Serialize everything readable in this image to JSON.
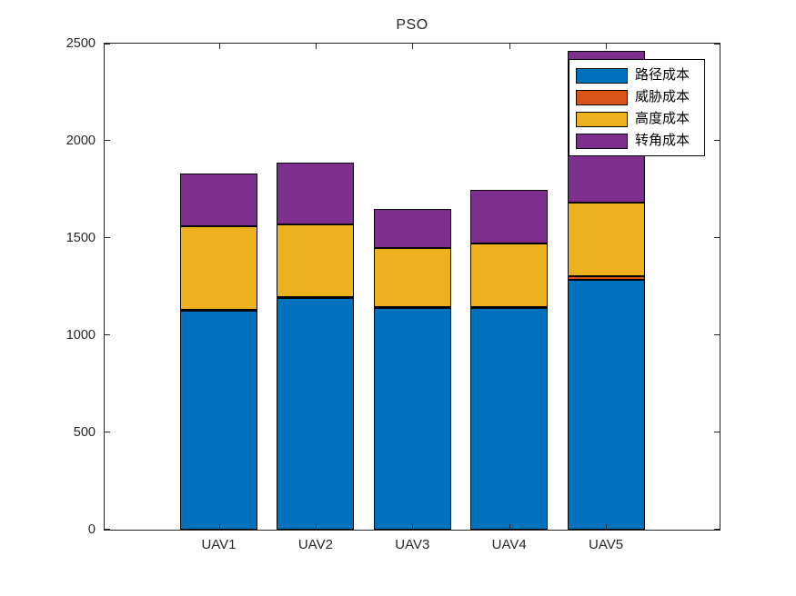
{
  "chart_data": {
    "type": "bar",
    "stacked": true,
    "title": "PSO",
    "categories": [
      "UAV1",
      "UAV2",
      "UAV3",
      "UAV4",
      "UAV5"
    ],
    "series": [
      {
        "name": "路径成本",
        "color": "#0072BD",
        "values": [
          1125,
          1190,
          1140,
          1140,
          1285
        ]
      },
      {
        "name": "威胁成本",
        "color": "#D95319",
        "values": [
          5,
          5,
          5,
          5,
          20
        ]
      },
      {
        "name": "高度成本",
        "color": "#EDB120",
        "values": [
          430,
          375,
          305,
          325,
          375
        ]
      },
      {
        "name": "转角成本",
        "color": "#7E2F8E",
        "values": [
          270,
          320,
          200,
          280,
          785
        ]
      }
    ],
    "xlabel": "",
    "ylabel": "",
    "ylim": [
      0,
      2500
    ],
    "yticks": [
      0,
      500,
      1000,
      1500,
      2000,
      2500
    ],
    "grid": false,
    "legend": {
      "position": "northeast",
      "labels": [
        "路径成本",
        "威胁成本",
        "高度成本",
        "转角成本"
      ]
    },
    "colors": {
      "axis": "#262626",
      "bar_edge": "#000000",
      "background": "#FFFFFF"
    }
  }
}
